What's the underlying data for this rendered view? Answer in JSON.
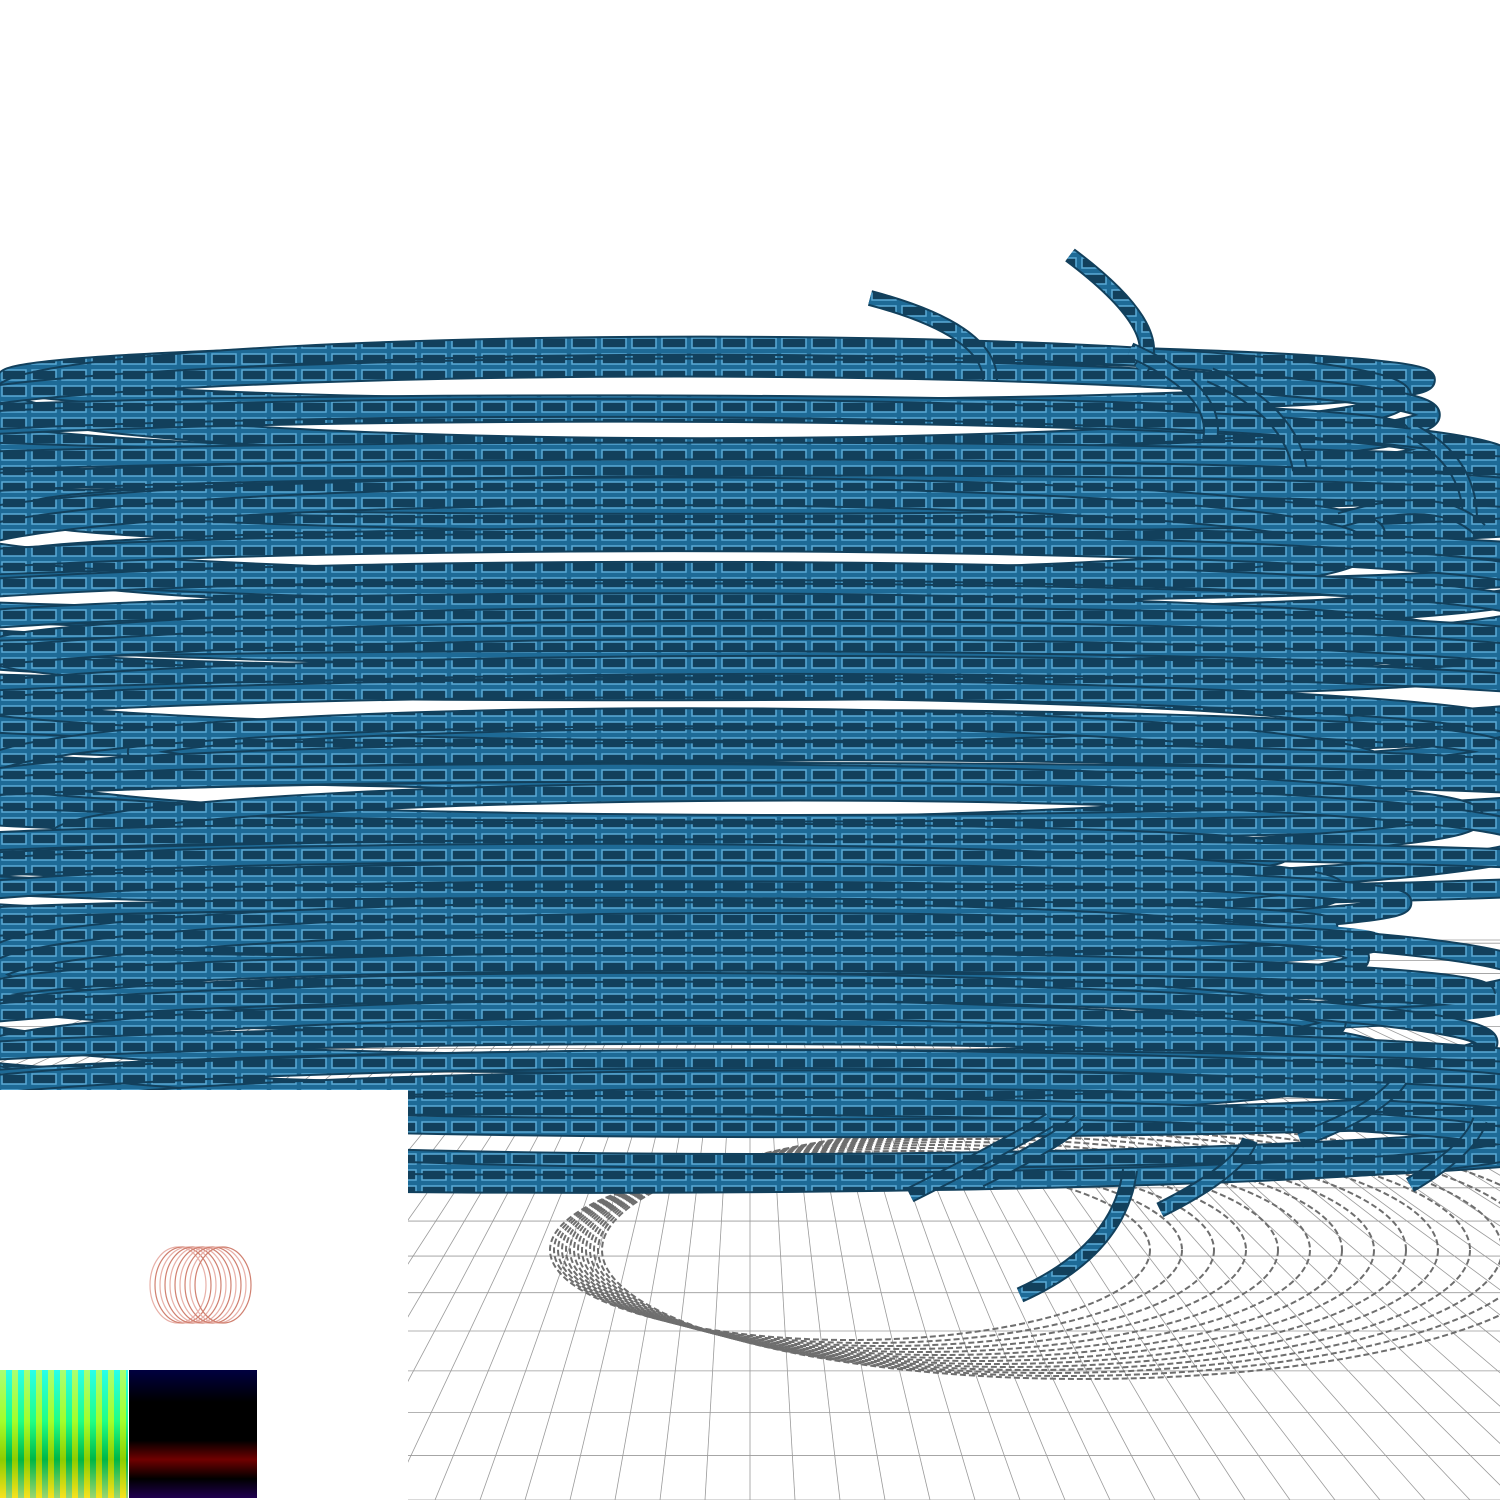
{
  "scene": {
    "description_label": "",
    "floor_grid": true,
    "coil_color": "#1e6a96",
    "coil_color_dark": "#12405c",
    "brick_highlight": "#5aaad6",
    "shadow_color": "#6e6e6e",
    "grid_color": "#9a9a9a"
  },
  "debug_views": {
    "normal_buffer": "normal-buffer",
    "depth_buffer": "depth-buffer",
    "thumbnail": "coil-thumbnail"
  }
}
